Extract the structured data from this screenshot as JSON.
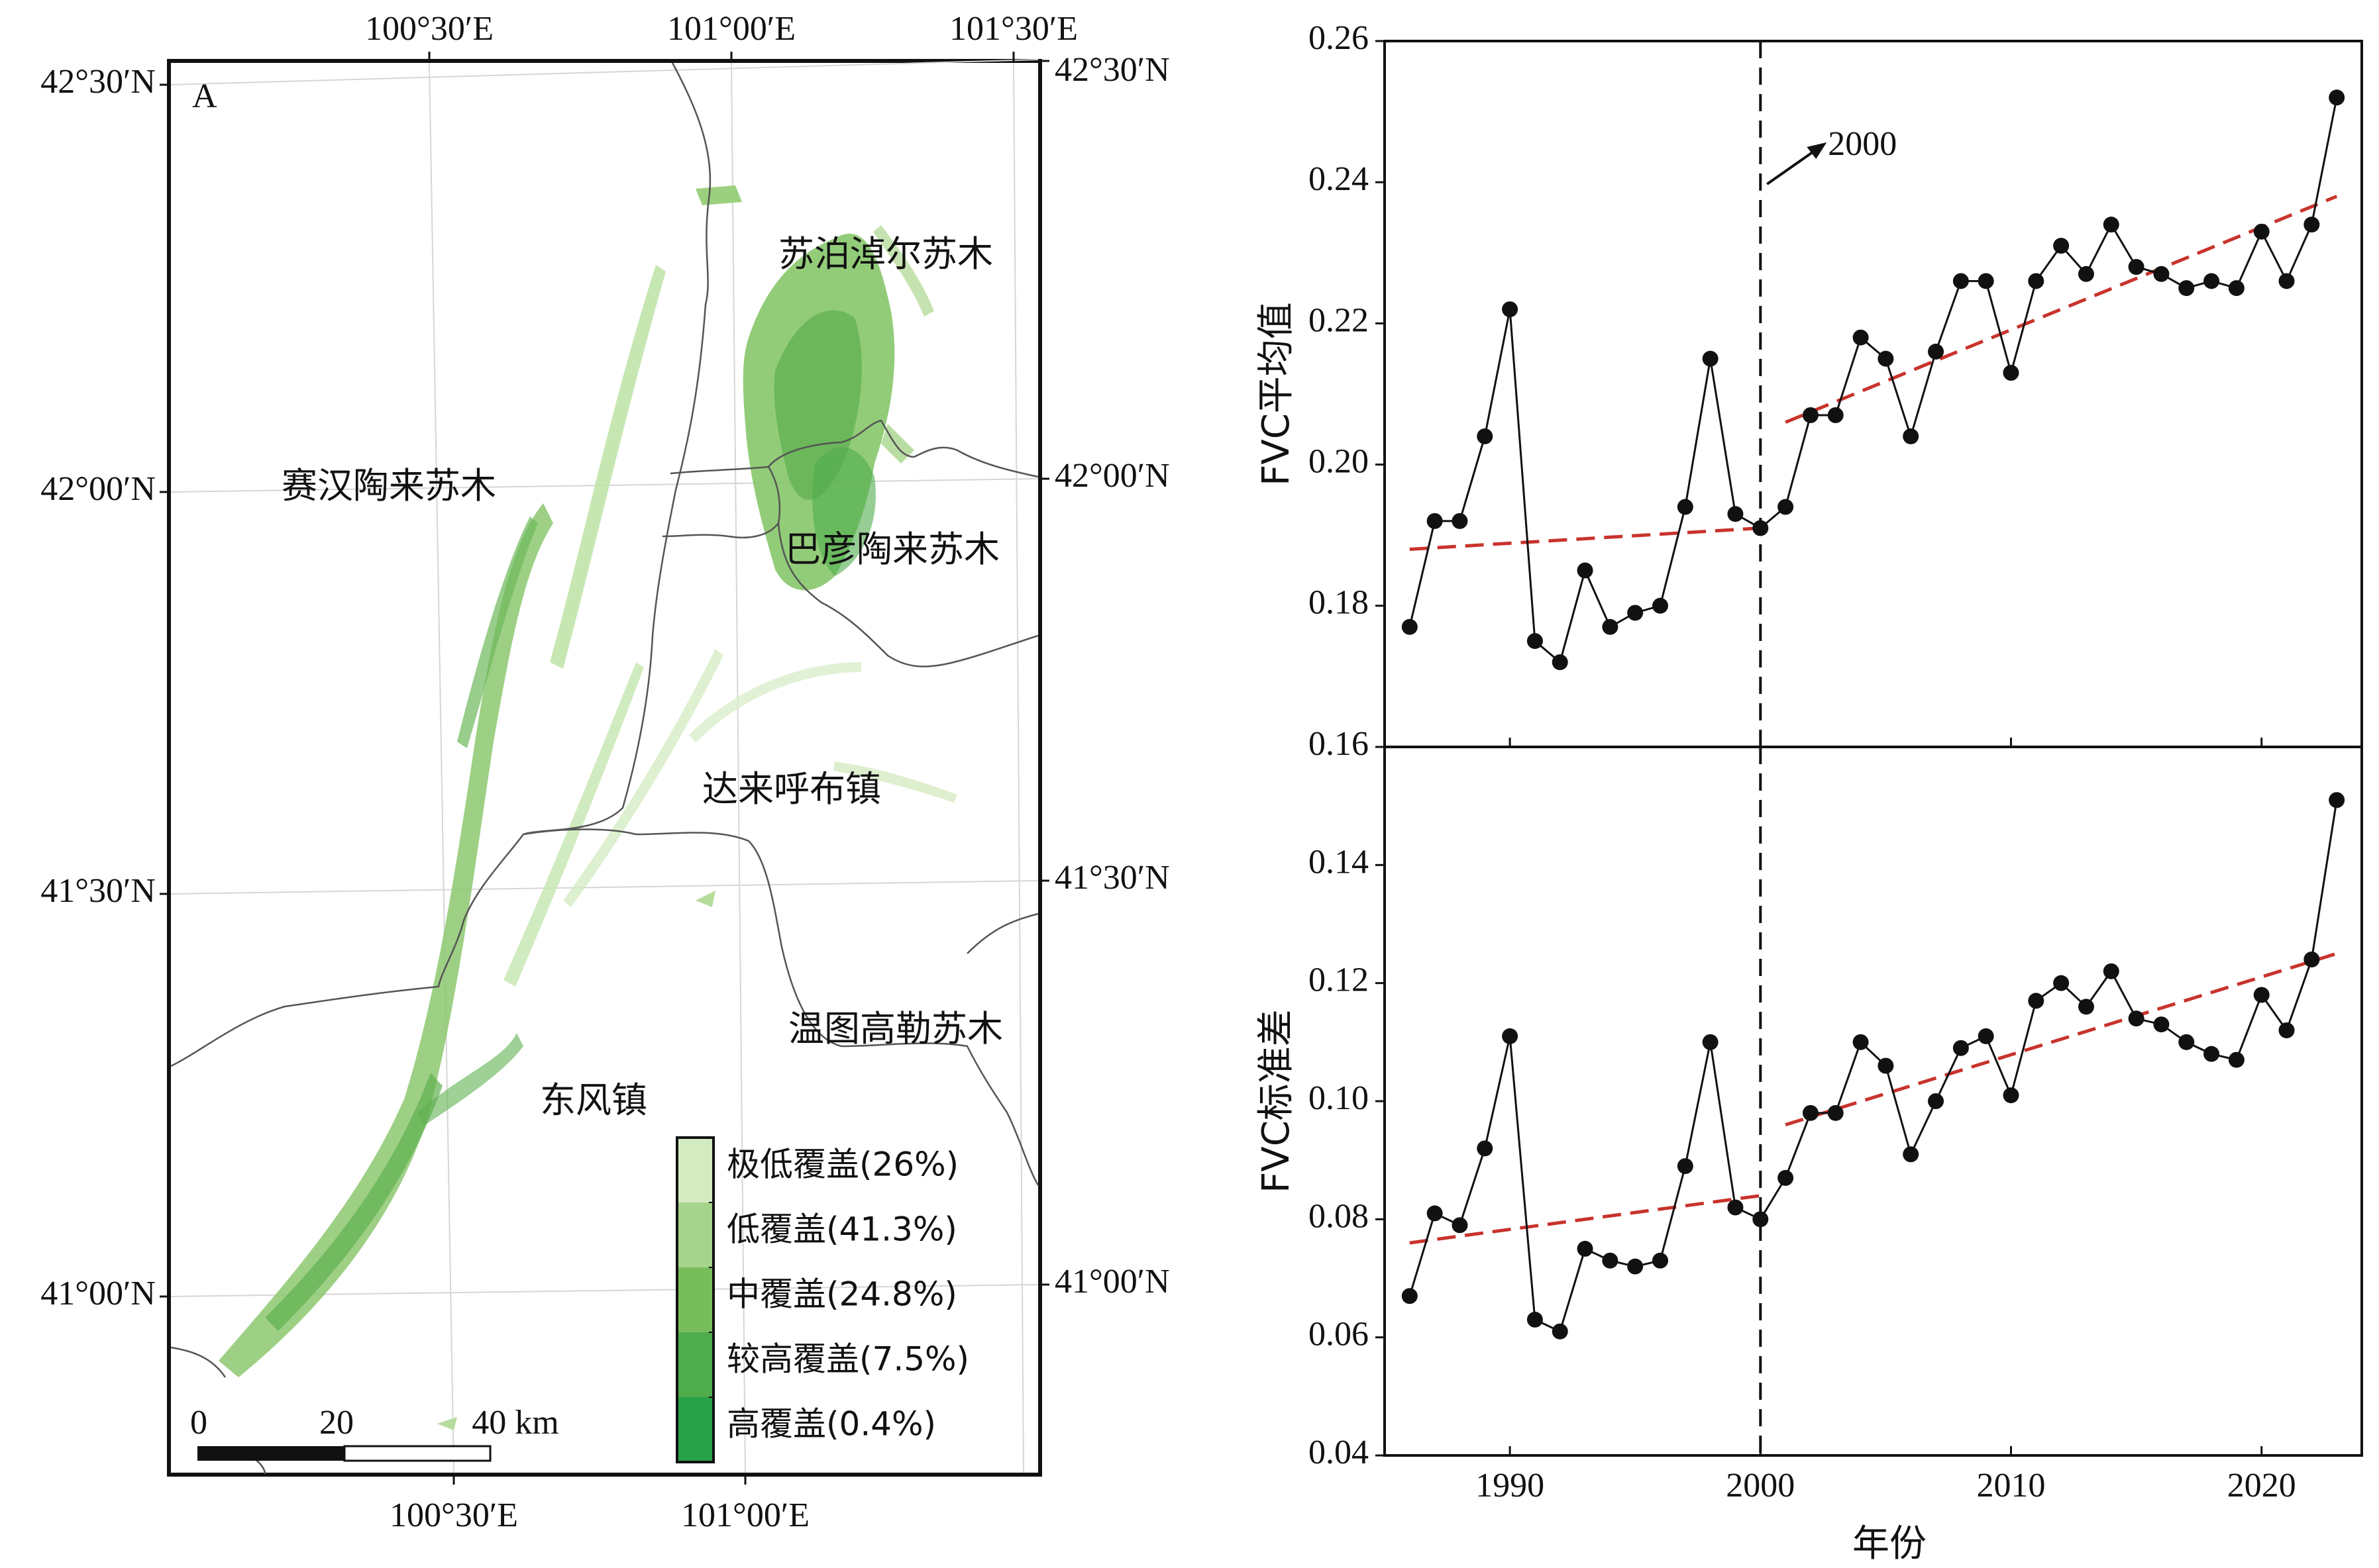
{
  "map": {
    "panel_label": "A",
    "lon_ticks_top": [
      "100°30′E",
      "101°00′E",
      "101°30′E"
    ],
    "lon_ticks_bottom": [
      "100°30′E",
      "101°00′E"
    ],
    "lat_ticks_left": [
      "42°30′N",
      "42°00′N",
      "41°30′N",
      "41°00′N"
    ],
    "lat_ticks_right": [
      "42°30′N",
      "42°00′N",
      "41°30′N",
      "41°00′N"
    ],
    "places": [
      "苏泊淖尔苏木",
      "赛汉陶来苏木",
      "巴彦陶来苏木",
      "达来呼布镇",
      "温图高勒苏木",
      "东风镇"
    ],
    "legend": [
      {
        "label": "极低覆盖(26%)",
        "color": "#d4ebc2"
      },
      {
        "label": "低覆盖(41.3%)",
        "color": "#a6d48c"
      },
      {
        "label": "中覆盖(24.8%)",
        "color": "#78bd5c"
      },
      {
        "label": "较高覆盖(7.5%)",
        "color": "#4fac4c"
      },
      {
        "label": "高覆盖(0.4%)",
        "color": "#28a048"
      }
    ],
    "scalebar": {
      "labels": [
        "0",
        "20",
        "40 km"
      ]
    }
  },
  "chart_data": [
    {
      "type": "line",
      "title": "",
      "xlabel": "",
      "ylabel": "FVC平均值",
      "ylim": [
        0.16,
        0.26
      ],
      "yticks": [
        0.16,
        0.18,
        0.2,
        0.22,
        0.24,
        0.26
      ],
      "ytick_labels": [
        "0.16",
        "0.18",
        "0.20",
        "0.22",
        "0.24",
        "0.26"
      ],
      "xlim": [
        1985,
        2024
      ],
      "xticks": [
        1990,
        2000,
        2010,
        2020
      ],
      "breakpoint_year": 2000,
      "annotation": "2000",
      "x": [
        1986,
        1987,
        1988,
        1989,
        1990,
        1991,
        1992,
        1993,
        1994,
        1995,
        1996,
        1997,
        1998,
        1999,
        2000,
        2001,
        2002,
        2003,
        2004,
        2005,
        2006,
        2007,
        2008,
        2009,
        2010,
        2011,
        2012,
        2013,
        2014,
        2015,
        2016,
        2017,
        2018,
        2019,
        2020,
        2021,
        2022,
        2023
      ],
      "series": [
        {
          "name": "FVC平均值",
          "values": [
            0.177,
            0.192,
            0.192,
            0.204,
            0.222,
            0.175,
            0.172,
            0.185,
            0.177,
            0.179,
            0.18,
            0.194,
            0.215,
            0.193,
            0.191,
            0.194,
            0.207,
            0.207,
            0.218,
            0.215,
            0.204,
            0.216,
            0.226,
            0.226,
            0.213,
            0.226,
            0.231,
            0.227,
            0.234,
            0.228,
            0.227,
            0.225,
            0.226,
            0.225,
            0.233,
            0.226,
            0.234,
            0.252
          ]
        }
      ],
      "trends": [
        {
          "x": [
            1986,
            2000
          ],
          "values": [
            0.188,
            0.191
          ]
        },
        {
          "x": [
            2001,
            2023
          ],
          "values": [
            0.206,
            0.238
          ]
        }
      ]
    },
    {
      "type": "line",
      "title": "",
      "xlabel": "年份",
      "ylabel": "FVC标准差",
      "ylim": [
        0.04,
        0.16
      ],
      "yticks": [
        0.04,
        0.06,
        0.08,
        0.1,
        0.12,
        0.14
      ],
      "ytick_labels": [
        "0.04",
        "0.06",
        "0.08",
        "0.10",
        "0.12",
        "0.14"
      ],
      "xlim": [
        1985,
        2024
      ],
      "xticks": [
        1990,
        2000,
        2010,
        2020
      ],
      "xtick_labels": [
        "1990",
        "2000",
        "2010",
        "2020"
      ],
      "breakpoint_year": 2000,
      "x": [
        1986,
        1987,
        1988,
        1989,
        1990,
        1991,
        1992,
        1993,
        1994,
        1995,
        1996,
        1997,
        1998,
        1999,
        2000,
        2001,
        2002,
        2003,
        2004,
        2005,
        2006,
        2007,
        2008,
        2009,
        2010,
        2011,
        2012,
        2013,
        2014,
        2015,
        2016,
        2017,
        2018,
        2019,
        2020,
        2021,
        2022,
        2023
      ],
      "series": [
        {
          "name": "FVC标准差",
          "values": [
            0.067,
            0.081,
            0.079,
            0.092,
            0.111,
            0.063,
            0.061,
            0.075,
            0.073,
            0.072,
            0.073,
            0.089,
            0.11,
            0.082,
            0.08,
            0.087,
            0.098,
            0.098,
            0.11,
            0.106,
            0.091,
            0.1,
            0.109,
            0.111,
            0.101,
            0.117,
            0.12,
            0.116,
            0.122,
            0.114,
            0.113,
            0.11,
            0.108,
            0.107,
            0.118,
            0.112,
            0.124,
            0.151
          ]
        }
      ],
      "trends": [
        {
          "x": [
            1986,
            2000
          ],
          "values": [
            0.076,
            0.084
          ]
        },
        {
          "x": [
            2001,
            2023
          ],
          "values": [
            0.096,
            0.125
          ]
        }
      ]
    }
  ]
}
